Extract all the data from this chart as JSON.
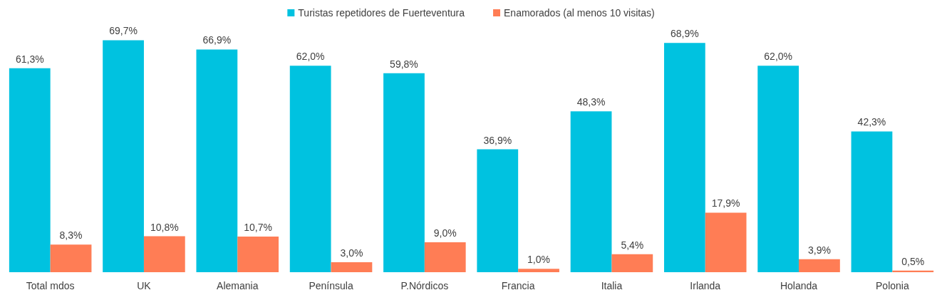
{
  "chart_data": {
    "type": "bar",
    "categories": [
      "Total mdos",
      "UK",
      "Alemania",
      "Península",
      "P.Nórdicos",
      "Francia",
      "Italia",
      "Irlanda",
      "Holanda",
      "Polonia"
    ],
    "series": [
      {
        "name": "Turistas repetidores de Fuerteventura",
        "color": "#00c2e0",
        "values": [
          61.3,
          69.7,
          66.9,
          62.0,
          59.8,
          36.9,
          48.3,
          68.9,
          62.0,
          42.3
        ],
        "value_labels": [
          "61,3%",
          "69,7%",
          "66,9%",
          "62,0%",
          "59,8%",
          "36,9%",
          "48,3%",
          "68,9%",
          "62,0%",
          "42,3%"
        ]
      },
      {
        "name": "Enamorados (al menos 10 visitas)",
        "color": "#ff7d55",
        "values": [
          8.3,
          10.8,
          10.7,
          3.0,
          9.0,
          1.0,
          5.4,
          17.9,
          3.9,
          0.5
        ],
        "value_labels": [
          "8,3%",
          "10,8%",
          "10,7%",
          "3,0%",
          "9,0%",
          "1,0%",
          "5,4%",
          "17,9%",
          "3,9%",
          "0,5%"
        ]
      }
    ],
    "legend": "top",
    "grid": false
  }
}
